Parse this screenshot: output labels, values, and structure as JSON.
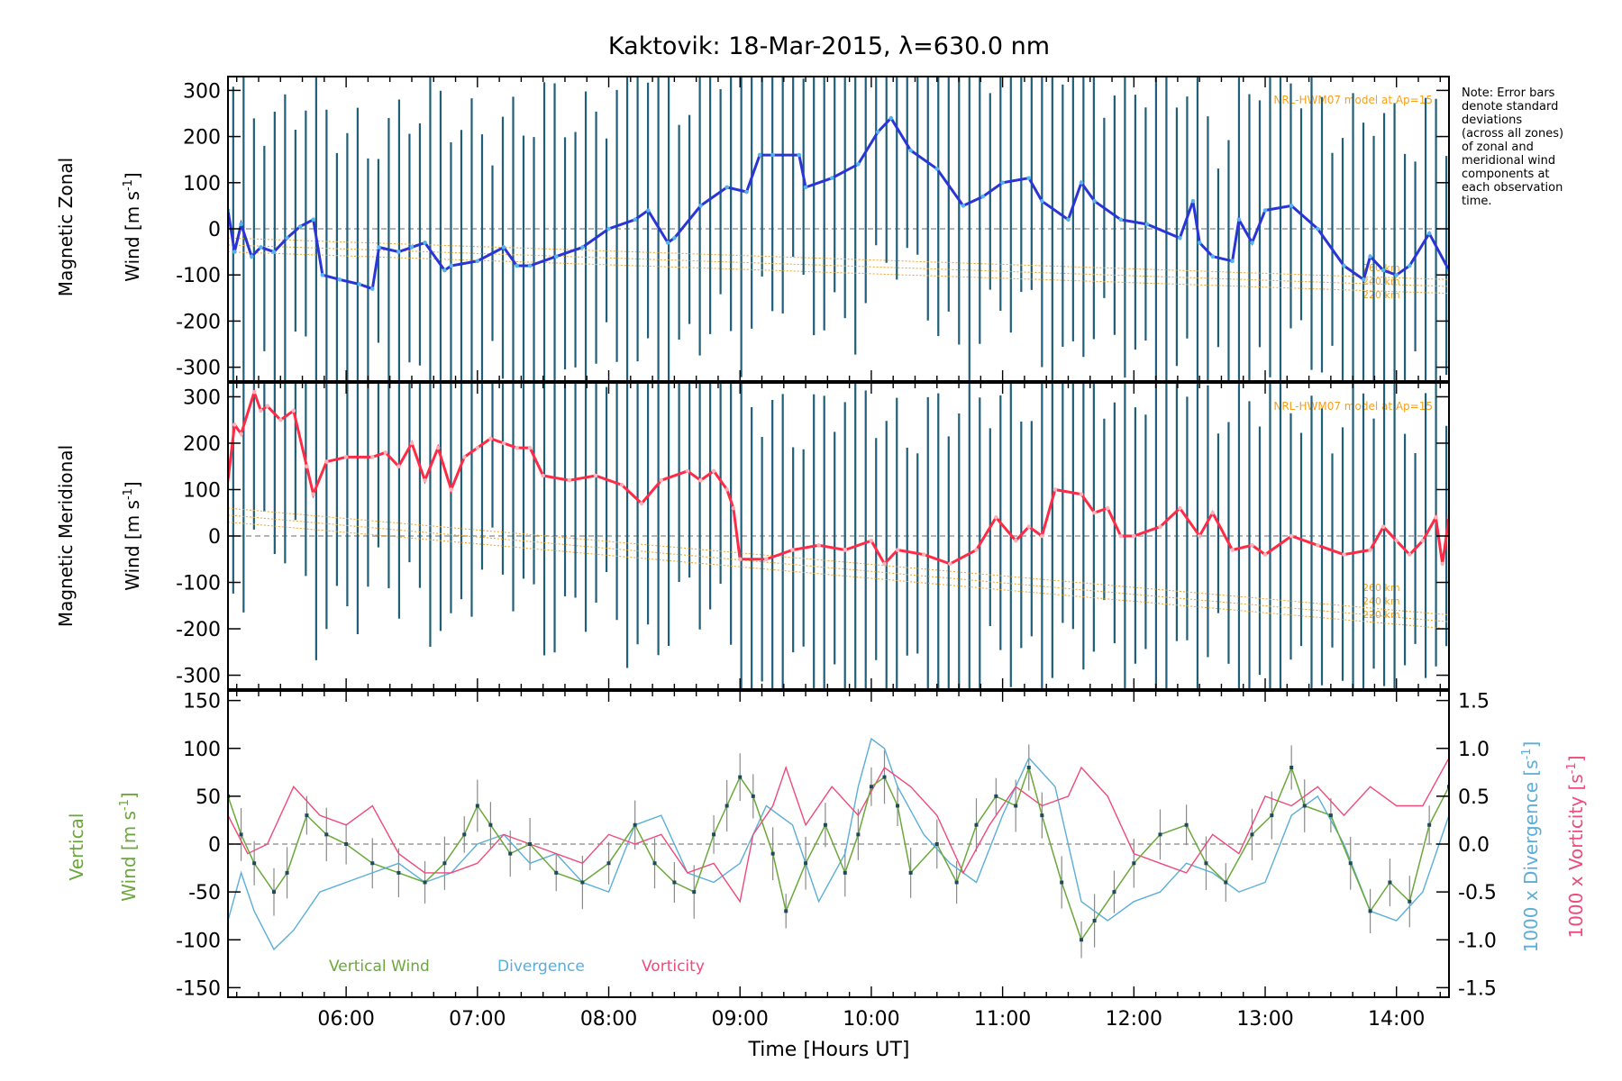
{
  "title": "Kaktovik: 18-Mar-2015, λ=630.0 nm",
  "note": [
    "Note: Error bars",
    "denote standard",
    "deviations",
    "(across all zones)",
    "of zonal and",
    "meridional wind",
    "components at",
    "each observation",
    "time."
  ],
  "x_axis": {
    "label": "Time [Hours UT]",
    "range_hours": [
      5.1,
      14.4
    ],
    "tick_labels": [
      "06:00",
      "07:00",
      "08:00",
      "09:00",
      "10:00",
      "11:00",
      "12:00",
      "13:00",
      "14:00"
    ],
    "tick_values": [
      6,
      7,
      8,
      9,
      10,
      11,
      12,
      13,
      14
    ]
  },
  "colors": {
    "zonal_line": "#2a35d6",
    "zonal_dots": "#55b4ee",
    "meridional_line": "#ff2a45",
    "error_bars": "#1f5f7a",
    "model": "#f5a020",
    "vertical": "#6aa83a",
    "divergence": "#5aaed8",
    "vorticity": "#ee4a7a",
    "zero_line": "#888888"
  },
  "chart_data": [
    {
      "type": "line",
      "panel": "zonal",
      "ylabel_line1": "Magnetic Zonal",
      "ylabel_line2": "Wind [m s",
      "ylabel_sup": "-1",
      "ylabel_close": "]",
      "ylim": [
        -330,
        330
      ],
      "ticks": [
        300,
        200,
        100,
        0,
        -100,
        -200,
        -300
      ],
      "model_label": "NRL-HWM07 model at Ap=15",
      "model_alt_labels": [
        "260 km",
        "240 km",
        "220 km"
      ],
      "series": [
        {
          "name": "",
          "x": [
            5.1,
            5.15,
            5.2,
            5.28,
            5.35,
            5.45,
            5.55,
            5.65,
            5.75,
            5.82,
            5.95,
            6.1,
            6.2,
            6.25,
            6.4,
            6.5,
            6.6,
            6.75,
            6.8,
            7.0,
            7.2,
            7.3,
            7.4,
            7.6,
            7.8,
            8.0,
            8.2,
            8.3,
            8.45,
            8.5,
            8.7,
            8.9,
            9.05,
            9.15,
            9.25,
            9.45,
            9.5,
            9.7,
            9.9,
            10.05,
            10.15,
            10.3,
            10.5,
            10.7,
            10.85,
            11.0,
            11.2,
            11.3,
            11.5,
            11.6,
            11.7,
            11.9,
            12.1,
            12.35,
            12.45,
            12.5,
            12.6,
            12.75,
            12.8,
            12.9,
            13.0,
            13.2,
            13.4,
            13.6,
            13.75,
            13.8,
            13.9,
            14.0,
            14.1,
            14.25,
            14.4
          ],
          "values": [
            40,
            -50,
            10,
            -60,
            -40,
            -50,
            -20,
            5,
            20,
            -100,
            -110,
            -120,
            -130,
            -40,
            -50,
            -40,
            -30,
            -90,
            -80,
            -70,
            -40,
            -80,
            -80,
            -60,
            -40,
            0,
            20,
            40,
            -30,
            -20,
            50,
            90,
            80,
            160,
            160,
            160,
            90,
            110,
            140,
            210,
            240,
            170,
            130,
            50,
            70,
            100,
            110,
            60,
            20,
            100,
            60,
            20,
            10,
            -20,
            60,
            -30,
            -60,
            -70,
            20,
            -30,
            40,
            50,
            0,
            -80,
            -110,
            -60,
            -90,
            -100,
            -80,
            -10,
            -90
          ]
        }
      ]
    },
    {
      "type": "line",
      "panel": "meridional",
      "ylabel_line1": "Magnetic Meridional",
      "ylabel_line2": "Wind [m s",
      "ylabel_sup": "-1",
      "ylabel_close": "]",
      "ylim": [
        -330,
        330
      ],
      "ticks": [
        300,
        200,
        100,
        0,
        -100,
        -200,
        -300
      ],
      "model_label": "NRL-HWM07 model at Ap=15",
      "model_alt_labels": [
        "260 km",
        "240 km",
        "220 km"
      ],
      "series": [
        {
          "name": "",
          "x": [
            5.1,
            5.15,
            5.2,
            5.3,
            5.35,
            5.4,
            5.5,
            5.6,
            5.7,
            5.75,
            5.85,
            6.0,
            6.2,
            6.3,
            6.4,
            6.5,
            6.6,
            6.7,
            6.8,
            6.9,
            7.0,
            7.1,
            7.2,
            7.3,
            7.4,
            7.5,
            7.7,
            7.9,
            8.1,
            8.25,
            8.4,
            8.6,
            8.7,
            8.8,
            8.9,
            8.95,
            9.0,
            9.2,
            9.4,
            9.6,
            9.8,
            10.0,
            10.1,
            10.2,
            10.4,
            10.6,
            10.8,
            10.95,
            11.1,
            11.2,
            11.3,
            11.4,
            11.6,
            11.7,
            11.8,
            11.9,
            12.0,
            12.2,
            12.35,
            12.5,
            12.6,
            12.75,
            12.9,
            13.0,
            13.2,
            13.4,
            13.6,
            13.8,
            13.9,
            14.0,
            14.1,
            14.2,
            14.3,
            14.35,
            14.4
          ],
          "values": [
            120,
            240,
            220,
            310,
            270,
            280,
            250,
            270,
            150,
            90,
            160,
            170,
            170,
            180,
            150,
            200,
            120,
            190,
            100,
            170,
            190,
            210,
            200,
            190,
            190,
            130,
            120,
            130,
            110,
            70,
            120,
            140,
            120,
            140,
            100,
            60,
            -50,
            -50,
            -30,
            -20,
            -30,
            -10,
            -60,
            -30,
            -40,
            -60,
            -30,
            40,
            -10,
            20,
            0,
            100,
            90,
            50,
            60,
            0,
            0,
            20,
            60,
            0,
            50,
            -30,
            -20,
            -40,
            0,
            -20,
            -40,
            -30,
            20,
            -10,
            -40,
            -10,
            40,
            -60,
            40
          ]
        }
      ]
    },
    {
      "type": "line",
      "panel": "vertical",
      "ylabel_left_1": "Vertical",
      "ylabel_left_2": "Wind [m s",
      "ylabel_sup": "-1",
      "ylabel_close": "]",
      "ylim": [
        -160,
        160
      ],
      "ticks_left": [
        150,
        100,
        50,
        0,
        -50,
        -100,
        -150
      ],
      "ylim_right": [
        -1.6,
        1.6
      ],
      "ticks_right": [
        "1.5",
        "1.0",
        "0.5",
        "0.0",
        "-0.5",
        "-1.0",
        "-1.5"
      ],
      "ylabel_right_div": "1000 x Divergence [s",
      "ylabel_right_vor": "1000 x Vorticity [s",
      "legend": [
        "Vertical Wind",
        "Divergence",
        "Vorticity"
      ],
      "series": [
        {
          "name": "Vertical Wind",
          "x": [
            5.1,
            5.2,
            5.3,
            5.45,
            5.55,
            5.7,
            5.85,
            6.0,
            6.2,
            6.4,
            6.6,
            6.75,
            6.9,
            7.0,
            7.1,
            7.25,
            7.4,
            7.6,
            7.8,
            8.0,
            8.2,
            8.35,
            8.5,
            8.65,
            8.8,
            8.9,
            9.0,
            9.1,
            9.25,
            9.35,
            9.5,
            9.65,
            9.8,
            9.9,
            10.0,
            10.1,
            10.2,
            10.3,
            10.5,
            10.65,
            10.8,
            10.95,
            11.1,
            11.2,
            11.3,
            11.45,
            11.6,
            11.7,
            11.85,
            12.0,
            12.2,
            12.4,
            12.55,
            12.7,
            12.9,
            13.05,
            13.2,
            13.3,
            13.5,
            13.65,
            13.8,
            13.95,
            14.1,
            14.25,
            14.4
          ],
          "values": [
            50,
            10,
            -20,
            -50,
            -30,
            30,
            10,
            0,
            -20,
            -30,
            -40,
            -20,
            10,
            40,
            20,
            -10,
            0,
            -30,
            -40,
            -20,
            20,
            -20,
            -40,
            -50,
            10,
            40,
            70,
            50,
            -10,
            -70,
            -20,
            20,
            -30,
            10,
            60,
            70,
            40,
            -30,
            0,
            -40,
            20,
            50,
            40,
            80,
            30,
            -40,
            -100,
            -80,
            -50,
            -20,
            10,
            20,
            -20,
            -40,
            10,
            30,
            80,
            40,
            30,
            -20,
            -70,
            -40,
            -60,
            20,
            60
          ]
        },
        {
          "name": "Divergence",
          "x": [
            5.1,
            5.2,
            5.3,
            5.45,
            5.6,
            5.8,
            6.0,
            6.2,
            6.4,
            6.6,
            6.8,
            7.0,
            7.2,
            7.4,
            7.6,
            7.8,
            8.0,
            8.2,
            8.4,
            8.6,
            8.8,
            9.0,
            9.2,
            9.4,
            9.6,
            9.8,
            9.9,
            10.0,
            10.1,
            10.2,
            10.4,
            10.6,
            10.8,
            11.0,
            11.2,
            11.4,
            11.6,
            11.8,
            12.0,
            12.2,
            12.4,
            12.6,
            12.8,
            13.0,
            13.2,
            13.4,
            13.6,
            13.8,
            14.0,
            14.2,
            14.4
          ],
          "values": [
            -0.8,
            -0.3,
            -0.7,
            -1.1,
            -0.9,
            -0.5,
            -0.4,
            -0.3,
            -0.2,
            -0.4,
            -0.3,
            0.0,
            0.1,
            -0.2,
            -0.1,
            -0.4,
            -0.5,
            0.2,
            0.3,
            -0.3,
            -0.4,
            -0.2,
            0.4,
            0.2,
            -0.6,
            -0.1,
            0.6,
            1.1,
            1.0,
            0.6,
            0.1,
            -0.2,
            -0.4,
            0.3,
            0.9,
            0.6,
            -0.6,
            -0.8,
            -0.6,
            -0.5,
            -0.2,
            -0.3,
            -0.5,
            -0.4,
            0.3,
            0.5,
            0.0,
            -0.7,
            -0.8,
            -0.5,
            0.3
          ]
        },
        {
          "name": "Vorticity",
          "x": [
            5.1,
            5.25,
            5.4,
            5.6,
            5.8,
            6.0,
            6.2,
            6.4,
            6.6,
            6.8,
            7.0,
            7.2,
            7.4,
            7.6,
            7.8,
            8.0,
            8.2,
            8.4,
            8.6,
            8.8,
            9.0,
            9.1,
            9.25,
            9.35,
            9.5,
            9.7,
            9.9,
            10.1,
            10.3,
            10.5,
            10.7,
            10.9,
            11.1,
            11.3,
            11.5,
            11.6,
            11.8,
            12.0,
            12.2,
            12.4,
            12.6,
            12.8,
            13.0,
            13.2,
            13.4,
            13.6,
            13.8,
            14.0,
            14.2,
            14.4
          ],
          "values": [
            0.3,
            -0.1,
            0.0,
            0.6,
            0.3,
            0.2,
            0.4,
            -0.1,
            -0.3,
            -0.3,
            -0.2,
            0.1,
            0.0,
            -0.1,
            -0.2,
            0.1,
            0.0,
            0.1,
            -0.3,
            -0.2,
            -0.6,
            0.1,
            0.4,
            0.8,
            0.2,
            0.6,
            0.3,
            0.8,
            0.6,
            0.3,
            -0.3,
            0.2,
            0.6,
            0.4,
            0.5,
            0.8,
            0.5,
            -0.1,
            -0.2,
            -0.3,
            0.1,
            -0.1,
            0.5,
            0.4,
            0.6,
            0.3,
            0.6,
            0.4,
            0.4,
            0.9
          ]
        }
      ]
    }
  ]
}
